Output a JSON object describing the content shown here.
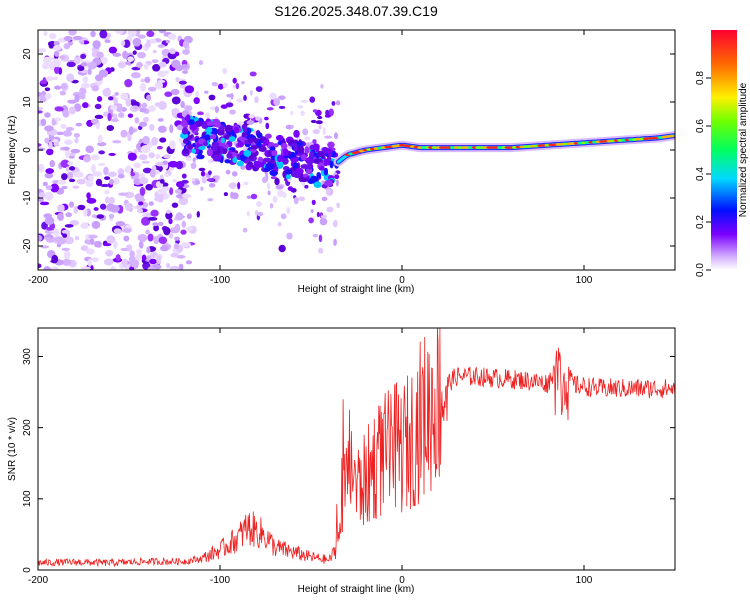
{
  "title": "S126.2025.348.07.39.C19",
  "chart_data": [
    {
      "type": "heatmap",
      "name": "spectrogram",
      "xlabel": "Height of straight line (km)",
      "ylabel": "Frequency (Hz)",
      "xlim": [
        -200,
        150
      ],
      "ylim": [
        -25,
        25
      ],
      "xticks": [
        -200,
        -100,
        0,
        100
      ],
      "yticks": [
        -20,
        -10,
        0,
        10,
        20
      ],
      "colorbar": {
        "label": "Normalized spectral amplitude",
        "range": [
          0,
          1
        ],
        "ticks": [
          0.0,
          0.2,
          0.4,
          0.6,
          0.8
        ]
      },
      "centerline": {
        "x": [
          -120,
          -100,
          -80,
          -60,
          -40,
          -30,
          -20,
          -10,
          0,
          10,
          20,
          40,
          60,
          80,
          100,
          120,
          140,
          150
        ],
        "freq": [
          3,
          2,
          0,
          -2,
          -4,
          -1,
          0,
          0.5,
          1,
          0.5,
          0.5,
          0.5,
          0.5,
          1,
          1.5,
          2,
          2.5,
          3
        ]
      }
    },
    {
      "type": "line",
      "name": "snr",
      "xlabel": "Height of straight line (km)",
      "ylabel": "SNR (10 * v/v)",
      "xlim": [
        -200,
        150
      ],
      "ylim": [
        0,
        340
      ],
      "xticks": [
        -200,
        -100,
        0,
        100
      ],
      "yticks": [
        0,
        100,
        200,
        300
      ],
      "color": "#ee2222",
      "series": [
        {
          "name": "SNR",
          "x": [
            -200,
            -180,
            -160,
            -140,
            -120,
            -110,
            -100,
            -90,
            -85,
            -80,
            -75,
            -70,
            -60,
            -50,
            -40,
            -36,
            -34,
            -28,
            -25,
            -20,
            -15,
            -10,
            -5,
            0,
            5,
            10,
            15,
            20,
            25,
            30,
            40,
            50,
            60,
            70,
            80,
            85,
            88,
            90,
            95,
            100,
            110,
            120,
            130,
            140,
            150
          ],
          "y": [
            10,
            11,
            10,
            12,
            12,
            16,
            28,
            45,
            60,
            55,
            48,
            32,
            25,
            18,
            14,
            30,
            70,
            160,
            115,
            125,
            150,
            160,
            170,
            170,
            185,
            210,
            225,
            248,
            262,
            272,
            272,
            270,
            268,
            266,
            262,
            285,
            250,
            275,
            260,
            258,
            255,
            255,
            255,
            255,
            255
          ]
        }
      ]
    }
  ]
}
